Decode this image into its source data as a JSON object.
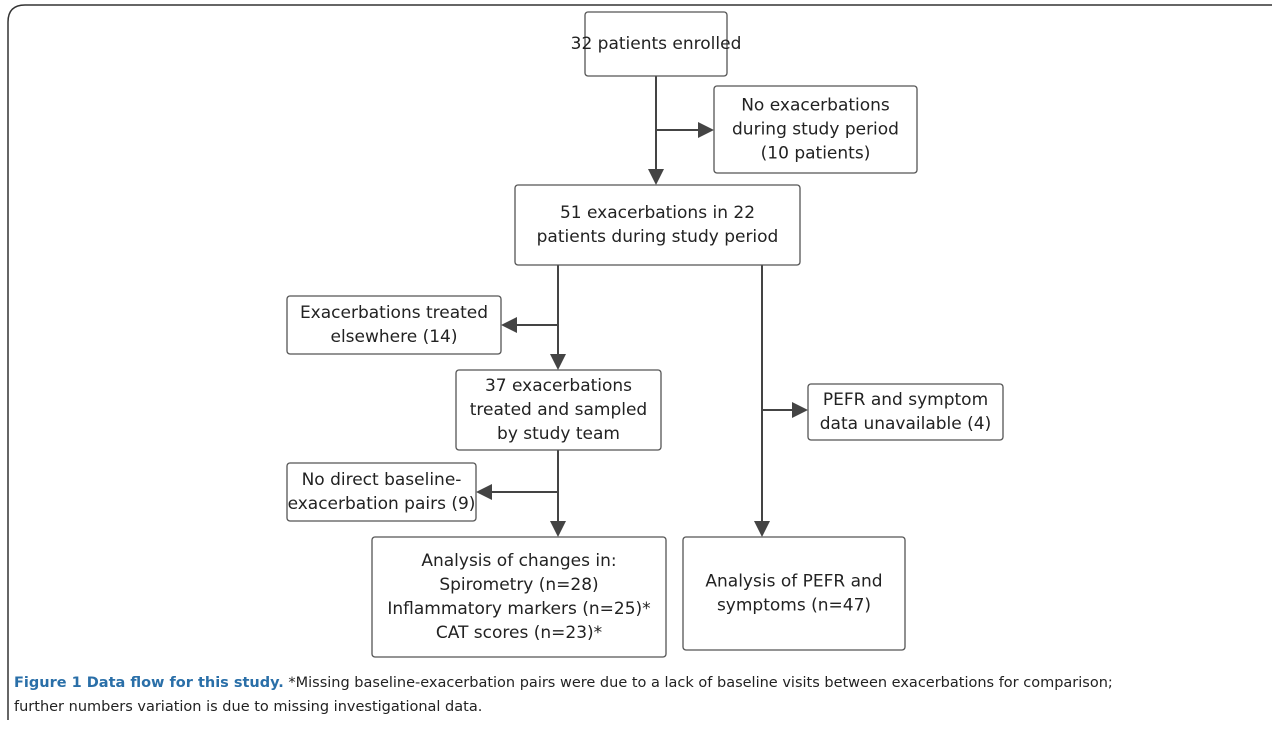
{
  "nodes": [
    {
      "lines": [
        "32 patients enrolled"
      ]
    },
    {
      "lines": [
        "No exacerbations",
        "during study period",
        "(10 patients)"
      ]
    },
    {
      "lines": [
        "51 exacerbations in 22",
        "patients during study period"
      ]
    },
    {
      "lines": [
        "Exacerbations treated",
        "elsewhere (14)"
      ]
    },
    {
      "lines": [
        "37 exacerbations",
        "treated and sampled",
        "by study team"
      ]
    },
    {
      "lines": [
        "PEFR and symptom",
        "data unavailable (4)"
      ]
    },
    {
      "lines": [
        "No direct baseline-",
        "exacerbation pairs (9)"
      ]
    },
    {
      "lines": [
        "Analysis of changes in:",
        "Spirometry (n=28)",
        "Inflammatory markers (n=25)*",
        "CAT scores (n=23)*"
      ]
    },
    {
      "lines": [
        "Analysis of PEFR and",
        "symptoms (n=47)"
      ]
    }
  ],
  "caption": {
    "label": "Figure 1 Data flow for this study.",
    "lines": [
      "*Missing baseline-exacerbation pairs were due to a lack of baseline visits between exacerbations for comparison;",
      "further numbers variation is due to missing investigational data."
    ]
  }
}
